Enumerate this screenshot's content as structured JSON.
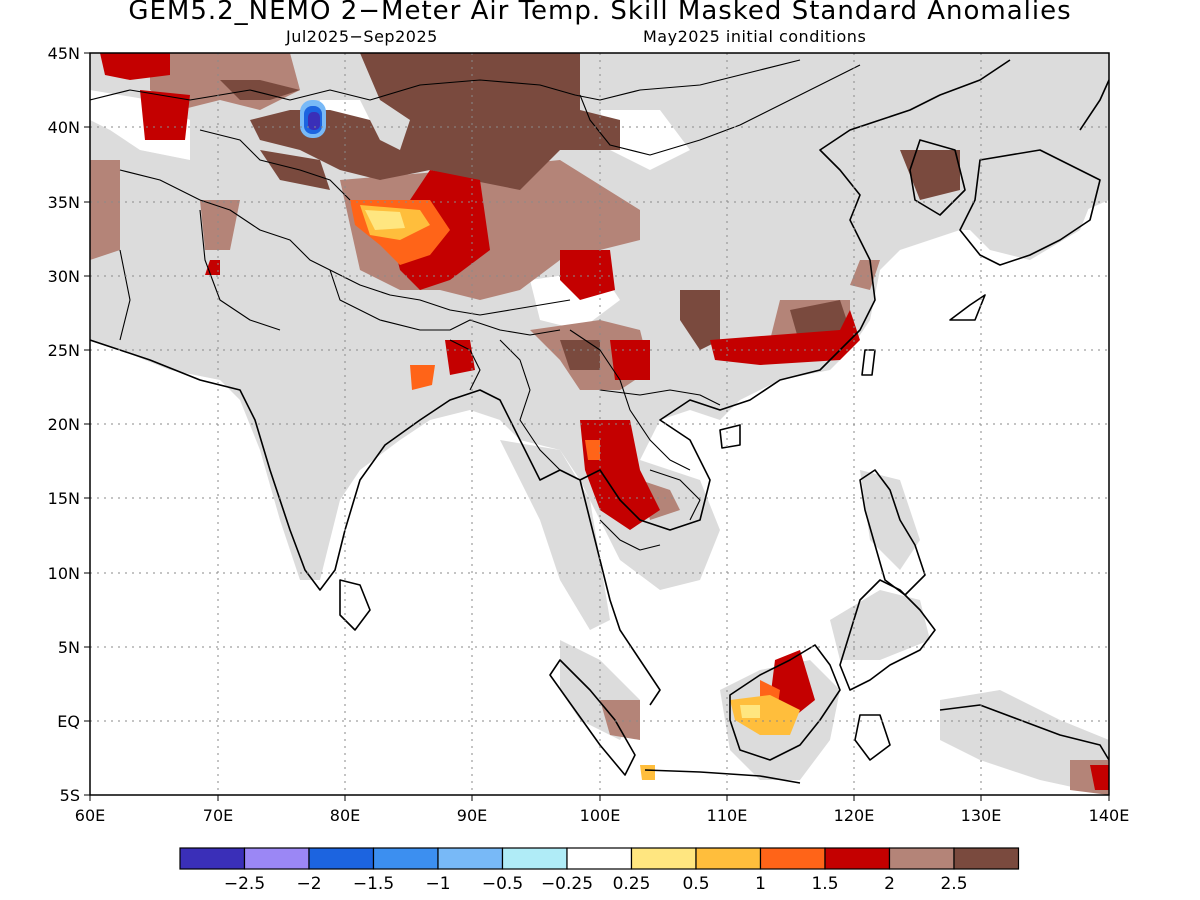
{
  "title": "GEM5.2_NEMO 2−Meter Air Temp. Skill Masked Standard Anomalies",
  "period": "Jul2025−Sep2025",
  "init": "May2025 initial conditions",
  "lon_labels": [
    "60E",
    "70E",
    "80E",
    "90E",
    "100E",
    "110E",
    "120E",
    "130E",
    "140E"
  ],
  "lat_labels": [
    "45N",
    "40N",
    "35N",
    "30N",
    "25N",
    "20N",
    "15N",
    "10N",
    "5N",
    "EQ",
    "5S"
  ],
  "colors": {
    "masked_gray": "#dcdcdc",
    "ocean": "#ffffff",
    "coast": "#000000"
  },
  "colorbar": {
    "colors": [
      "#3a2fb8",
      "#9b87f5",
      "#1c64e0",
      "#3c8ff0",
      "#78b9f7",
      "#b0ecf7",
      "#ffffff",
      "#ffe680",
      "#ffbe3c",
      "#ff6418",
      "#c40000",
      "#b48478",
      "#7a4a3e"
    ],
    "labels": [
      "−2.5",
      "−2",
      "−1.5",
      "−1",
      "−0.5",
      "−0.25",
      "0.25",
      "0.5",
      "1",
      "1.5",
      "2",
      "2.5"
    ]
  }
}
